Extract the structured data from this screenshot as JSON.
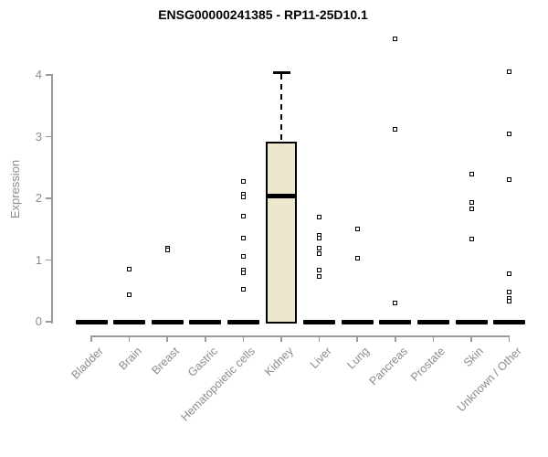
{
  "chart_data": {
    "type": "boxplot",
    "title": "ENSG00000241385 - RP11-25D10.1",
    "ylabel": "Expression",
    "xlabel": "",
    "ylim": [
      0,
      4
    ],
    "yticks": [
      "0",
      "1",
      "2",
      "3",
      "4"
    ],
    "grid": "off",
    "legend": "none",
    "categories": [
      "Bladder",
      "Brain",
      "Breast",
      "Gastric",
      "Hematopoietic cells",
      "Kidney",
      "Liver",
      "Lung",
      "Pancreas",
      "Prostate",
      "Skin",
      "Unknown / Other"
    ],
    "boxes": [
      {
        "category": "Bladder",
        "q1": 0,
        "median": 0,
        "q3": 0,
        "whisker_high": 0,
        "points": []
      },
      {
        "category": "Brain",
        "q1": 0,
        "median": 0,
        "q3": 0,
        "whisker_high": 0,
        "points": [
          0.85,
          0.43
        ]
      },
      {
        "category": "Breast",
        "q1": 0,
        "median": 0,
        "q3": 0,
        "whisker_high": 0,
        "points": [
          1.2,
          1.16
        ]
      },
      {
        "category": "Gastric",
        "q1": 0,
        "median": 0,
        "q3": 0,
        "whisker_high": 0,
        "points": []
      },
      {
        "category": "Hematopoietic cells",
        "q1": 0,
        "median": 0,
        "q3": 0,
        "whisker_high": 0,
        "points": [
          2.27,
          2.06,
          2.02,
          1.71,
          1.36,
          1.06,
          0.83,
          0.79,
          0.52
        ]
      },
      {
        "category": "Kidney",
        "q1": 0,
        "median": 2.03,
        "q3": 2.91,
        "whisker_high": 4.04,
        "points": []
      },
      {
        "category": "Liver",
        "q1": 0,
        "median": 0,
        "q3": 0,
        "whisker_high": 0,
        "points": [
          1.69,
          1.4,
          1.35,
          1.19,
          1.11,
          0.83,
          0.73
        ]
      },
      {
        "category": "Lung",
        "q1": 0,
        "median": 0,
        "q3": 0,
        "whisker_high": 0,
        "points": [
          1.5,
          1.03
        ]
      },
      {
        "category": "Pancreas",
        "q1": 0,
        "median": 0,
        "q3": 0,
        "whisker_high": 0,
        "points": [
          4.59,
          3.12,
          0.31
        ]
      },
      {
        "category": "Prostate",
        "q1": 0,
        "median": 0,
        "q3": 0,
        "whisker_high": 0,
        "points": []
      },
      {
        "category": "Skin",
        "q1": 0,
        "median": 0,
        "q3": 0,
        "whisker_high": 0,
        "points": [
          2.39,
          1.94,
          1.83,
          1.34
        ]
      },
      {
        "category": "Unknown / Other",
        "q1": 0,
        "median": 0,
        "q3": 0,
        "whisker_high": 0,
        "points": [
          4.05,
          3.05,
          2.31,
          0.78,
          0.48,
          0.38,
          0.34
        ]
      }
    ],
    "colors": {
      "box_fill": "#EDE8CD",
      "box_border": "#000000",
      "point": "#000000",
      "axis": "#9a9a9a",
      "tick_label": "#8c8c8c",
      "title": "#000000"
    }
  }
}
